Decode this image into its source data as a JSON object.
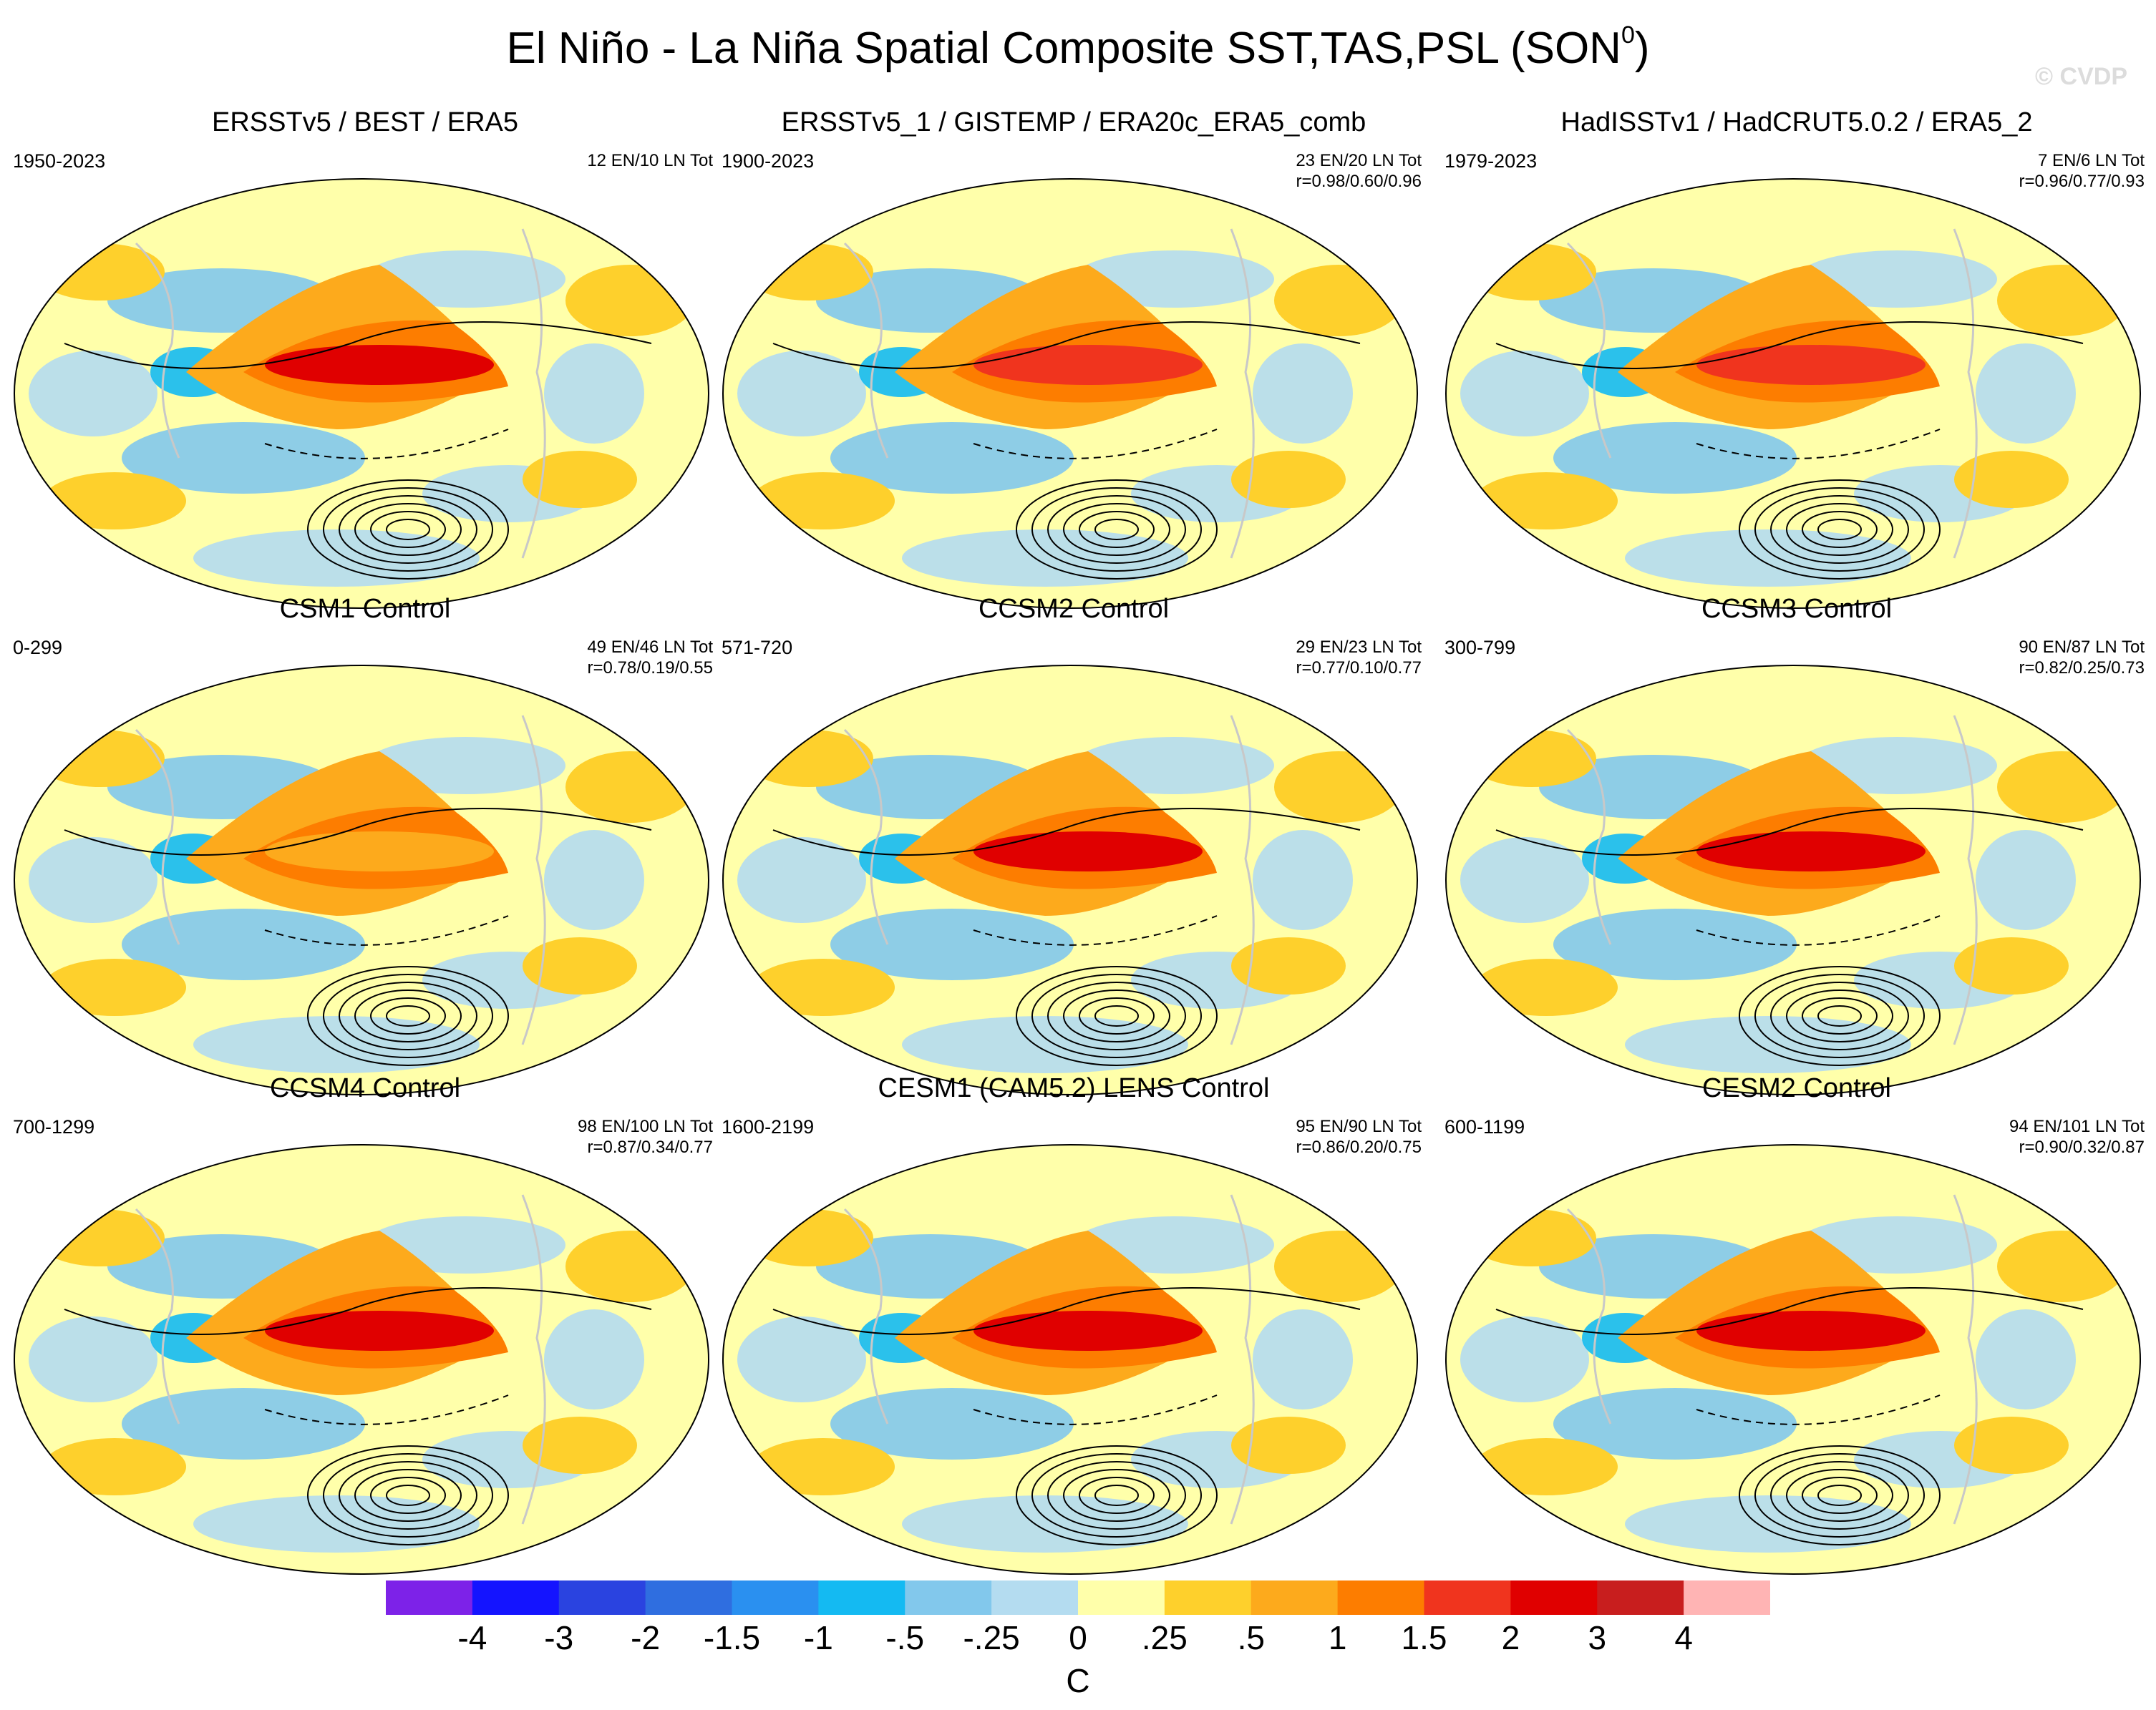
{
  "title": "El Niño - La Niña Spatial Composite SST,TAS,PSL (SON",
  "title_superscript": "0",
  "title_close": ")",
  "watermark": "© CVDP",
  "panels": [
    {
      "title": "ERSSTv5 / BEST / ERA5",
      "years": "1950-2023",
      "counts": "12 EN/10 LN Tot",
      "corr": ""
    },
    {
      "title": "ERSSTv5_1 / GISTEMP / ERA20c_ERA5_comb",
      "years": "1900-2023",
      "counts": "23 EN/20 LN Tot",
      "corr": "r=0.98/0.60/0.96"
    },
    {
      "title": "HadISSTv1 / HadCRUT5.0.2 / ERA5_2",
      "years": "1979-2023",
      "counts": "7 EN/6 LN Tot",
      "corr": "r=0.96/0.77/0.93"
    },
    {
      "title": "CSM1 Control",
      "years": "0-299",
      "counts": "49 EN/46 LN Tot",
      "corr": "r=0.78/0.19/0.55"
    },
    {
      "title": "CCSM2 Control",
      "years": "571-720",
      "counts": "29 EN/23 LN Tot",
      "corr": "r=0.77/0.10/0.77"
    },
    {
      "title": "CCSM3 Control",
      "years": "300-799",
      "counts": "90 EN/87 LN Tot",
      "corr": "r=0.82/0.25/0.73"
    },
    {
      "title": "CCSM4 Control",
      "years": "700-1299",
      "counts": "98 EN/100 LN Tot",
      "corr": "r=0.87/0.34/0.77"
    },
    {
      "title": "CESM1 (CAM5.2) LENS Control",
      "years": "1600-2199",
      "counts": "95 EN/90 LN Tot",
      "corr": "r=0.86/0.20/0.75"
    },
    {
      "title": "CESM2 Control",
      "years": "600-1199",
      "counts": "94 EN/101 LN Tot",
      "corr": "r=0.90/0.32/0.87"
    }
  ],
  "colorbar": {
    "colors": [
      "#7d22e8",
      "#1414ff",
      "#2a43e0",
      "#2f6ee0",
      "#2a90f0",
      "#14baf2",
      "#82c8ec",
      "#b4dcf0",
      "#ffffaa",
      "#fed02c",
      "#fdaa1c",
      "#fd7d00",
      "#f0341e",
      "#e00000",
      "#c81e1e",
      "#ffb4b4"
    ],
    "ticks": [
      "-4",
      "-3",
      "-2",
      "-1.5",
      "-1",
      "-.5",
      "-.25",
      "0",
      ".25",
      ".5",
      "1",
      "1.5",
      "2",
      "3",
      "4"
    ],
    "unit": "C"
  }
}
